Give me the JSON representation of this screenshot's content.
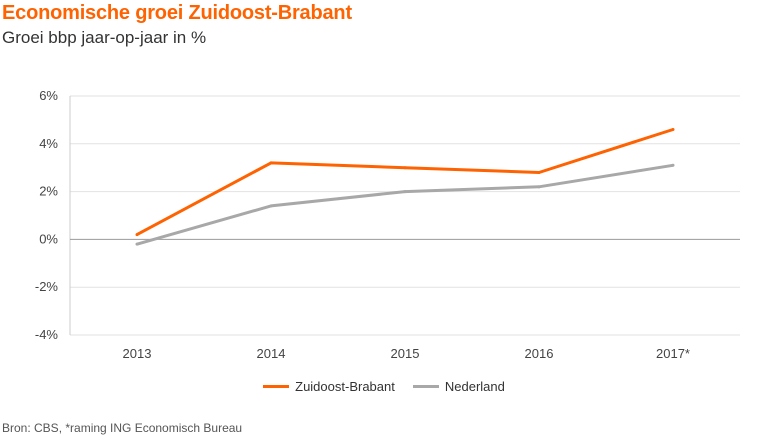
{
  "header": {
    "title": "Economische groei Zuidoost-Brabant",
    "subtitle": "Groei bbp jaar-op-jaar in %"
  },
  "footer": {
    "source": "Bron: CBS, *raming ING Economisch Bureau"
  },
  "colors": {
    "title": "#ff6200",
    "zuidoost_brabant": "#ff6200",
    "nederland": "#a8a8a8"
  },
  "chart_data": {
    "type": "line",
    "title": "Economische groei Zuidoost-Brabant",
    "subtitle": "Groei bbp jaar-op-jaar in %",
    "categories": [
      "2013",
      "2014",
      "2015",
      "2016",
      "2017*"
    ],
    "series": [
      {
        "name": "Zuidoost-Brabant",
        "values": [
          0.2,
          3.2,
          3.0,
          2.8,
          4.6
        ],
        "color": "#ff6200"
      },
      {
        "name": "Nederland",
        "values": [
          -0.2,
          1.4,
          2.0,
          2.2,
          3.1
        ],
        "color": "#a8a8a8"
      }
    ],
    "ylim": [
      -4,
      6
    ],
    "yticks": [
      6,
      4,
      2,
      0,
      -2,
      -4
    ],
    "ytick_labels": [
      "6%",
      "4%",
      "2%",
      "0%",
      "-2%",
      "-4%"
    ],
    "grid": "horizontal",
    "legend_position": "bottom-center"
  }
}
